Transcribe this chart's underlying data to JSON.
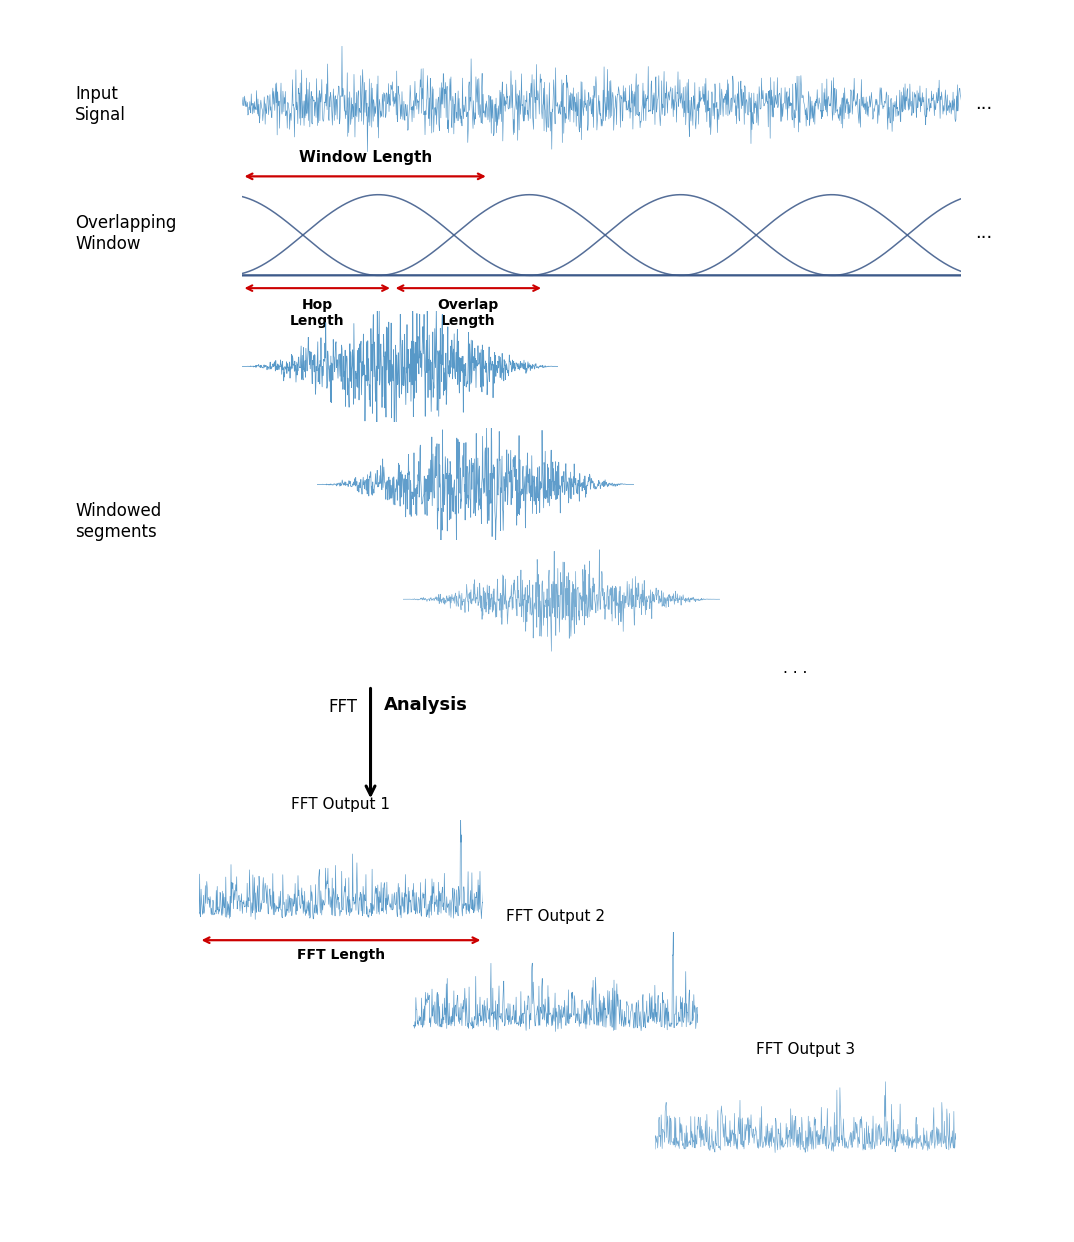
{
  "bg_color": "#ffffff",
  "signal_color": "#4a90c4",
  "window_color": "#3d5a8a",
  "arrow_color": "#cc0000",
  "text_color": "#000000",
  "label_input_signal": "Input\nSignal",
  "label_overlapping_window": "Overlapping\nWindow",
  "label_windowed_segments": "Windowed\nsegments",
  "label_window_length": "Window Length",
  "label_hop_length": "Hop\nLength",
  "label_overlap_length": "Overlap\nLength",
  "label_fft": "FFT",
  "label_analysis": "Analysis",
  "label_fft_output1": "FFT Output 1",
  "label_fft_output2": "FFT Output 2",
  "label_fft_output3": "FFT Output 3",
  "label_fft_length": "FFT Length",
  "dots": "...",
  "fig_width": 10.74,
  "fig_height": 12.42
}
